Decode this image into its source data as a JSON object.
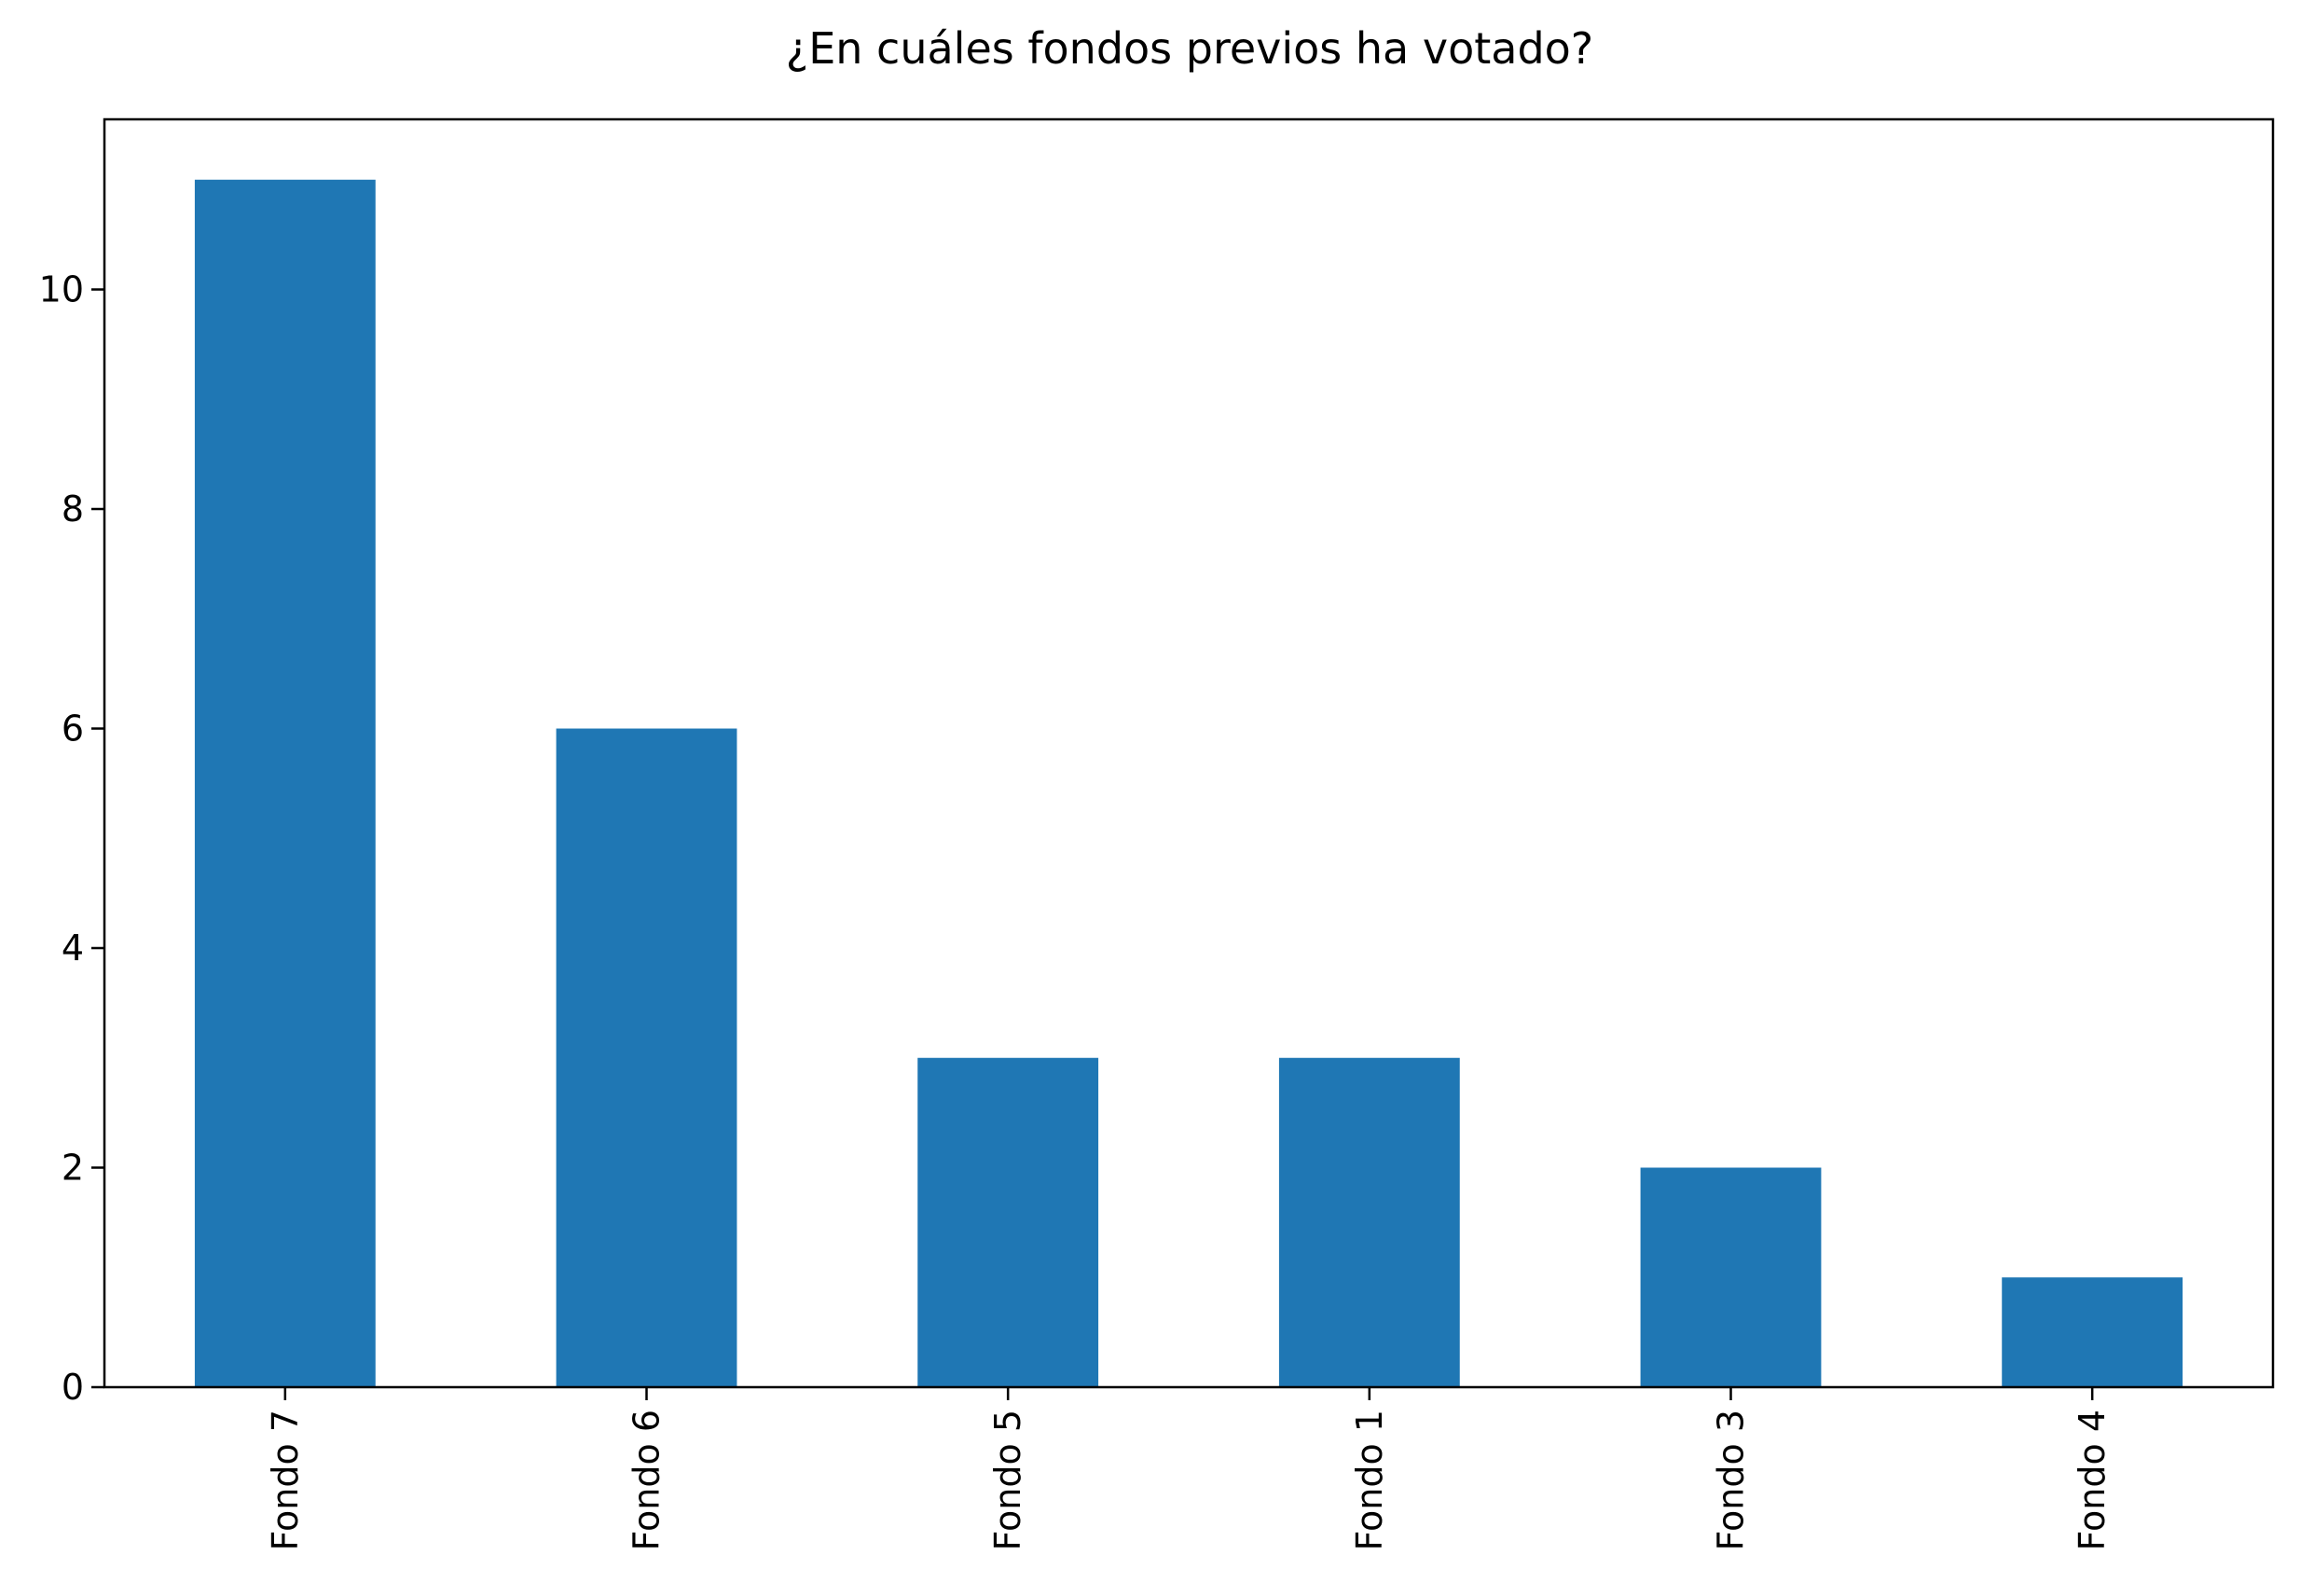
{
  "chart_data": {
    "type": "bar",
    "title": "¿En cuáles fondos previos ha votado?",
    "xlabel": "",
    "ylabel": "",
    "categories": [
      "Fondo 7",
      "Fondo 6",
      "Fondo 5",
      "Fondo 1",
      "Fondo 3",
      "Fondo 4"
    ],
    "values": [
      11,
      6,
      3,
      3,
      2,
      1
    ],
    "ylim": [
      0,
      11.55
    ],
    "yticks": [
      0,
      2,
      4,
      6,
      8,
      10
    ],
    "bar_color": "#1f77b4",
    "grid": false,
    "legend": "none",
    "x_tick_rotation": "vertical"
  }
}
